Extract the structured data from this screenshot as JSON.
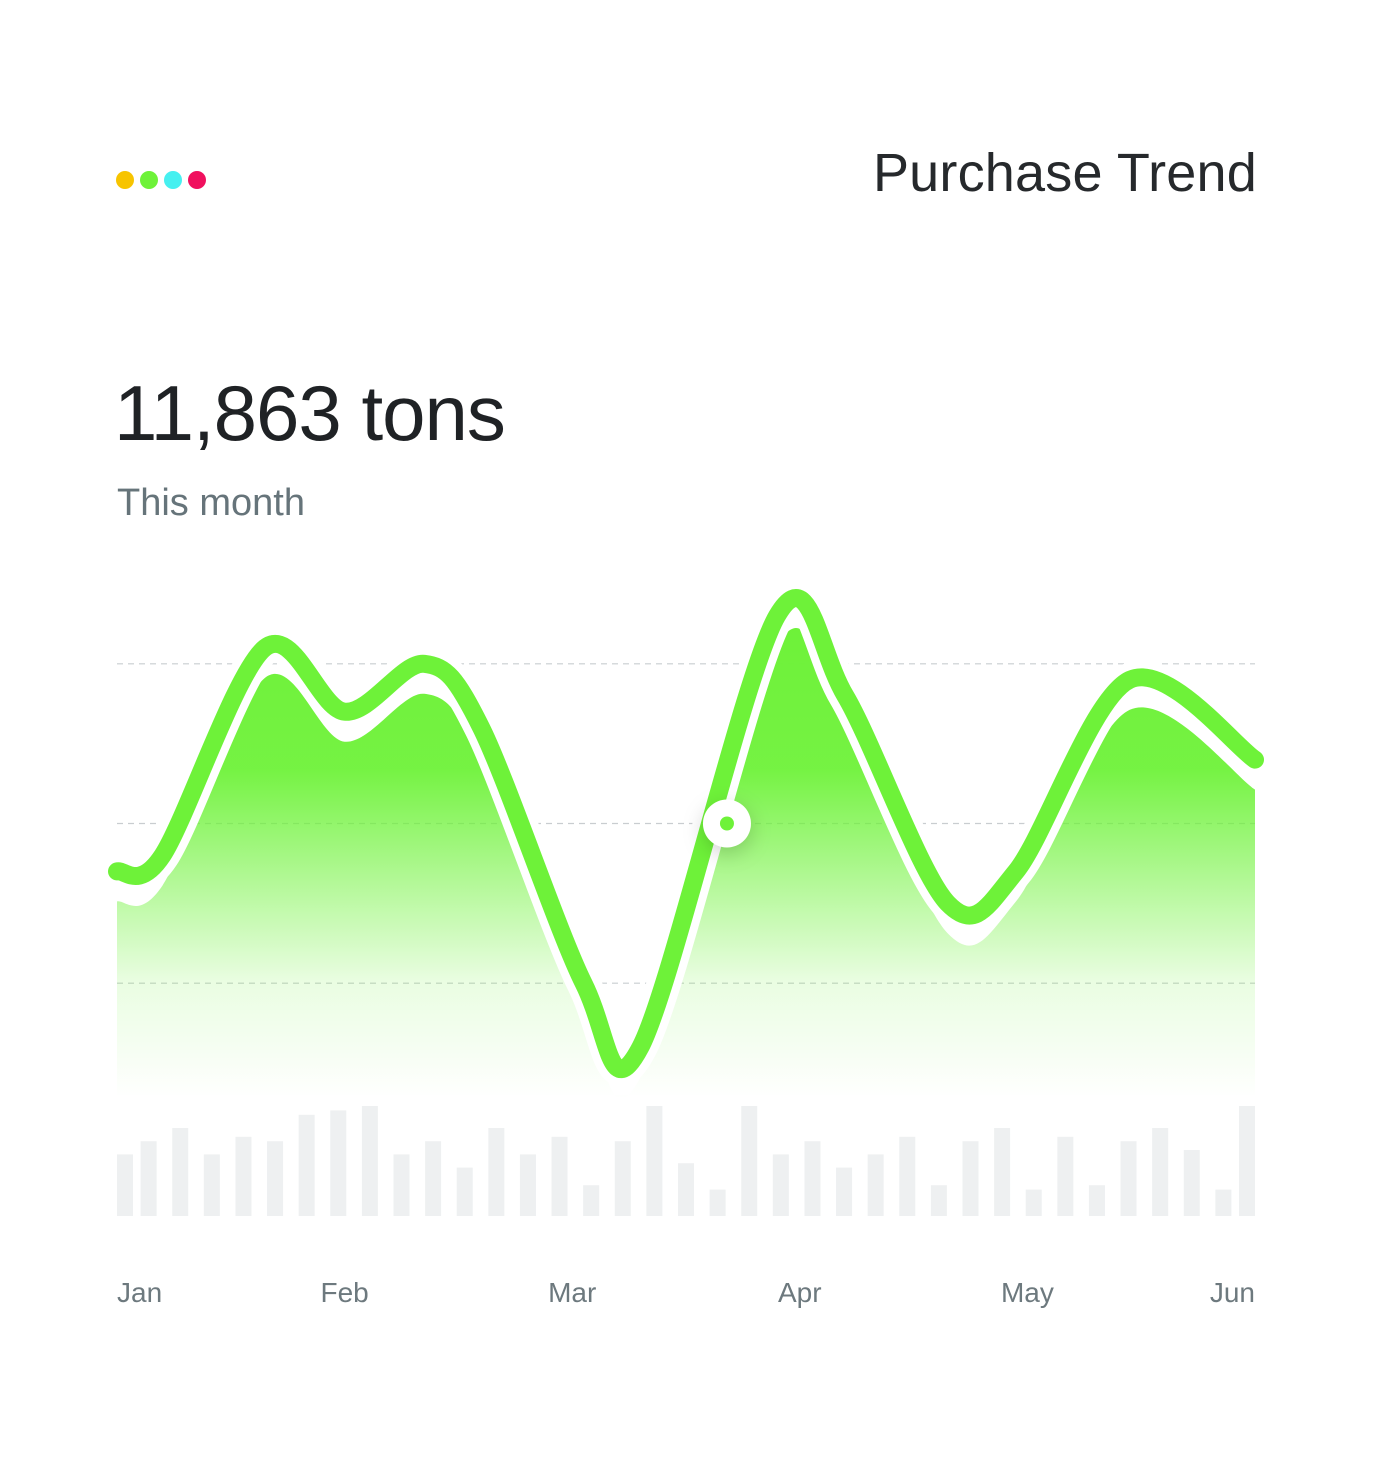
{
  "header": {
    "title": "Purchase Trend",
    "dots": [
      {
        "name": "yellow-dot",
        "color": "#f7c400"
      },
      {
        "name": "green-dot",
        "color": "#6ef239"
      },
      {
        "name": "cyan-dot",
        "color": "#46f0f0"
      },
      {
        "name": "pink-dot",
        "color": "#f0105e"
      }
    ]
  },
  "summary": {
    "value": "11,863 tons",
    "period": "This month"
  },
  "colors": {
    "line": "#6ef239",
    "fill": "#6ef239",
    "bars": "#eef0f1",
    "grid": "#c9cdd0",
    "marker": "#6ef239"
  },
  "chart_data": {
    "type": "area",
    "x": [
      0.0,
      0.2,
      0.65,
      1.0,
      1.35,
      1.6,
      2.05,
      2.3,
      2.9,
      3.2,
      3.65,
      3.95,
      4.45,
      5.0
    ],
    "y": [
      58,
      60,
      86,
      78,
      84,
      76,
      44,
      36,
      90,
      80,
      54,
      58,
      82,
      72
    ],
    "categories": [
      "Jan",
      "Feb",
      "Mar",
      "Apr",
      "May",
      "Jun"
    ],
    "ylim": [
      30,
      97
    ],
    "grid_values": [
      84,
      64,
      44
    ],
    "highlight_point": {
      "x": 2.68,
      "y": 64
    },
    "volume_bars": [
      14,
      17,
      20,
      14,
      18,
      17,
      23,
      24,
      25,
      14,
      17,
      11,
      20,
      14,
      18,
      7,
      17,
      25,
      12,
      6,
      25,
      14,
      17,
      11,
      14,
      18,
      7,
      17,
      20,
      6,
      18,
      7,
      17,
      20,
      15,
      6,
      25
    ]
  }
}
